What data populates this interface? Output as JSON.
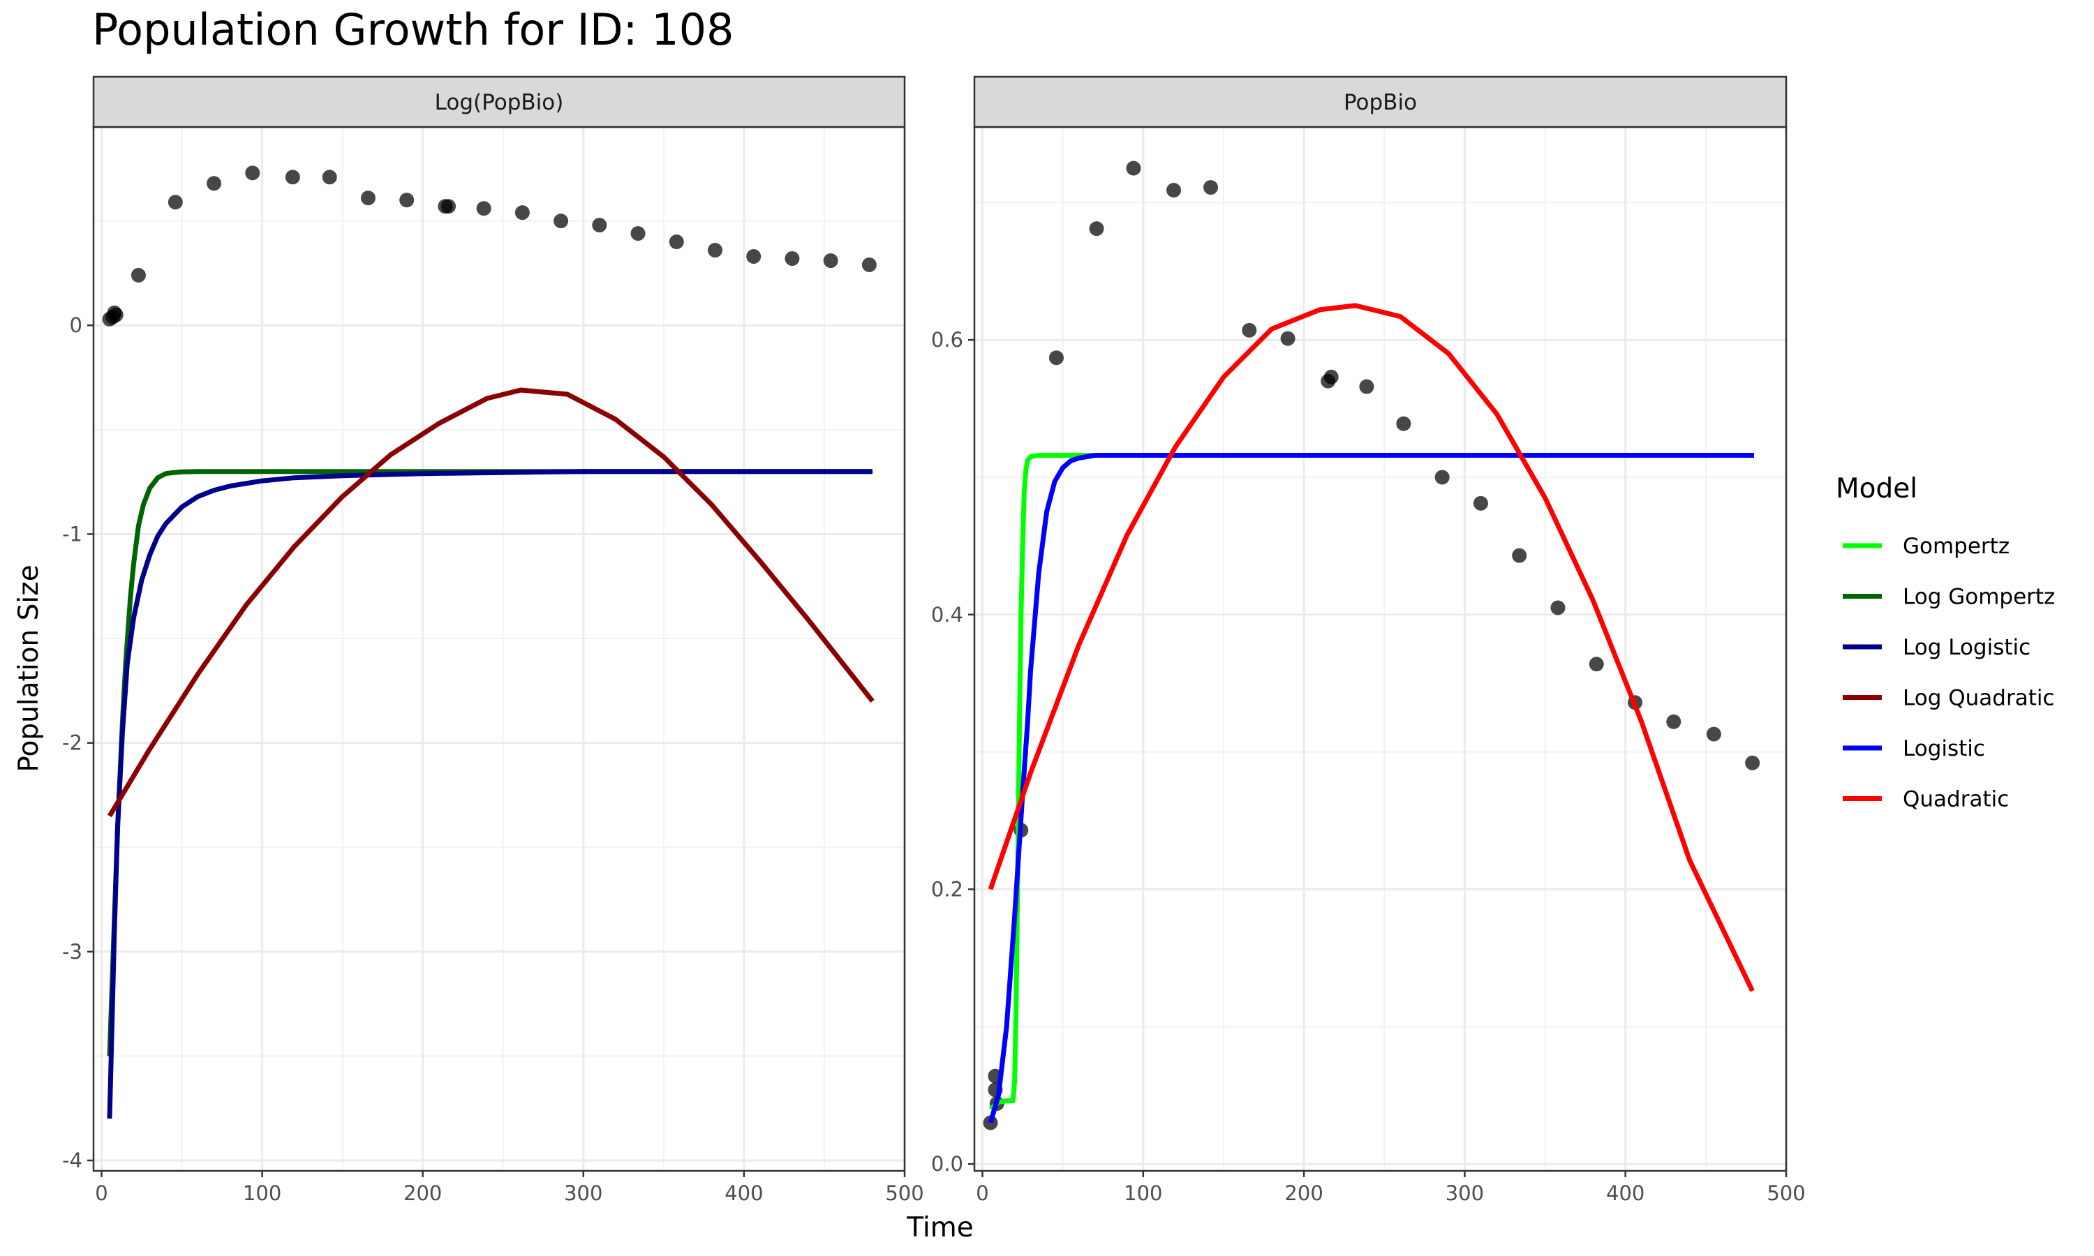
{
  "chart_data": {
    "type": "scatter",
    "title": "Population Growth for ID: 108",
    "xlabel": "Time",
    "ylabel": "Population Size",
    "legend": {
      "title": "Model",
      "placement": "right",
      "entries": [
        {
          "name": "Gompertz",
          "color": "#00ff00"
        },
        {
          "name": "Log Gompertz",
          "color": "#006400"
        },
        {
          "name": "Log Logistic",
          "color": "#00008b"
        },
        {
          "name": "Log Quadratic",
          "color": "#8b0000"
        },
        {
          "name": "Logistic",
          "color": "#0000ff"
        },
        {
          "name": "Quadratic",
          "color": "#ff0000"
        }
      ]
    },
    "panels": [
      {
        "strip": "Log(PopBio)",
        "xlim": [
          -5,
          500
        ],
        "ylim": [
          -4.05,
          0.95
        ],
        "xticks": [
          0,
          100,
          200,
          300,
          400,
          500
        ],
        "xtick_labels": [
          "0",
          "100",
          "200",
          "300",
          "400",
          "500"
        ],
        "yticks": [
          -4,
          -3,
          -2,
          -1,
          0
        ],
        "ytick_labels": [
          "-4",
          "-3",
          "-2",
          "-1",
          "0"
        ],
        "grid": true,
        "points": [
          {
            "x": 5,
            "y": 0.03
          },
          {
            "x": 7,
            "y": 0.04
          },
          {
            "x": 8,
            "y": 0.06
          },
          {
            "x": 9,
            "y": 0.05
          },
          {
            "x": 23,
            "y": 0.24
          },
          {
            "x": 46,
            "y": 0.59
          },
          {
            "x": 70,
            "y": 0.68
          },
          {
            "x": 94,
            "y": 0.73
          },
          {
            "x": 119,
            "y": 0.71
          },
          {
            "x": 142,
            "y": 0.71
          },
          {
            "x": 166,
            "y": 0.61
          },
          {
            "x": 190,
            "y": 0.6
          },
          {
            "x": 214,
            "y": 0.57
          },
          {
            "x": 216,
            "y": 0.57
          },
          {
            "x": 238,
            "y": 0.56
          },
          {
            "x": 262,
            "y": 0.54
          },
          {
            "x": 286,
            "y": 0.5
          },
          {
            "x": 310,
            "y": 0.48
          },
          {
            "x": 334,
            "y": 0.44
          },
          {
            "x": 358,
            "y": 0.4
          },
          {
            "x": 382,
            "y": 0.36
          },
          {
            "x": 406,
            "y": 0.33
          },
          {
            "x": 430,
            "y": 0.32
          },
          {
            "x": 454,
            "y": 0.31
          },
          {
            "x": 478,
            "y": 0.29
          }
        ],
        "series": [
          {
            "name": "Log Gompertz",
            "color": "#006400",
            "x": [
              5,
              8,
              10,
              13,
              15,
              18,
              20,
              23,
              26,
              30,
              35,
              40,
              45,
              50,
              60,
              70,
              80,
              100,
              150,
              200,
              300,
              400,
              480
            ],
            "y": [
              -3.5,
              -2.84,
              -2.41,
              -1.9,
              -1.62,
              -1.3,
              -1.14,
              -0.96,
              -0.86,
              -0.78,
              -0.73,
              -0.71,
              -0.705,
              -0.702,
              -0.7,
              -0.7,
              -0.7,
              -0.7,
              -0.7,
              -0.7,
              -0.7,
              -0.7,
              -0.7
            ]
          },
          {
            "name": "Log Logistic",
            "color": "#00008b",
            "x": [
              5,
              8,
              10,
              13,
              16,
              20,
              25,
              30,
              35,
              40,
              50,
              60,
              70,
              80,
              100,
              120,
              150,
              200,
              250,
              300,
              400,
              480
            ],
            "y": [
              -3.8,
              -2.9,
              -2.4,
              -1.95,
              -1.62,
              -1.4,
              -1.22,
              -1.1,
              -1.01,
              -0.95,
              -0.87,
              -0.82,
              -0.79,
              -0.77,
              -0.745,
              -0.73,
              -0.72,
              -0.71,
              -0.705,
              -0.7,
              -0.7,
              -0.7
            ]
          },
          {
            "name": "Log Quadratic",
            "color": "#8b0000",
            "x": [
              5,
              30,
              60,
              90,
              120,
              150,
              180,
              210,
              240,
              261,
              290,
              320,
              350,
              380,
              410,
              440,
              480
            ],
            "y": [
              -2.35,
              -2.03,
              -1.67,
              -1.34,
              -1.06,
              -0.82,
              -0.62,
              -0.47,
              -0.35,
              -0.31,
              -0.33,
              -0.45,
              -0.63,
              -0.86,
              -1.13,
              -1.41,
              -1.8
            ]
          }
        ]
      },
      {
        "strip": "PopBio",
        "xlim": [
          -5,
          500
        ],
        "ylim": [
          -0.005,
          0.755
        ],
        "xticks": [
          0,
          100,
          200,
          300,
          400,
          500
        ],
        "xtick_labels": [
          "0",
          "100",
          "200",
          "300",
          "400",
          "500"
        ],
        "yticks": [
          0,
          0.2,
          0.4,
          0.6
        ],
        "ytick_labels": [
          "0.0",
          "0.2",
          "0.4",
          "0.6"
        ],
        "grid": true,
        "points": [
          {
            "x": 5,
            "y": 0.03
          },
          {
            "x": 8,
            "y": 0.064
          },
          {
            "x": 8,
            "y": 0.054
          },
          {
            "x": 9,
            "y": 0.044
          },
          {
            "x": 24,
            "y": 0.243
          },
          {
            "x": 46,
            "y": 0.587
          },
          {
            "x": 71,
            "y": 0.681
          },
          {
            "x": 94,
            "y": 0.725
          },
          {
            "x": 119,
            "y": 0.709
          },
          {
            "x": 142,
            "y": 0.711
          },
          {
            "x": 166,
            "y": 0.607
          },
          {
            "x": 190,
            "y": 0.601
          },
          {
            "x": 215,
            "y": 0.57
          },
          {
            "x": 217,
            "y": 0.573
          },
          {
            "x": 239,
            "y": 0.566
          },
          {
            "x": 262,
            "y": 0.539
          },
          {
            "x": 286,
            "y": 0.5
          },
          {
            "x": 310,
            "y": 0.481
          },
          {
            "x": 334,
            "y": 0.443
          },
          {
            "x": 358,
            "y": 0.405
          },
          {
            "x": 382,
            "y": 0.364
          },
          {
            "x": 406,
            "y": 0.336
          },
          {
            "x": 430,
            "y": 0.322
          },
          {
            "x": 455,
            "y": 0.313
          },
          {
            "x": 479,
            "y": 0.292
          }
        ],
        "series": [
          {
            "name": "Gompertz",
            "color": "#00ff00",
            "x": [
              5,
              10,
              15,
              19,
              20,
              21,
              22,
              23,
              24,
              25,
              26,
              27,
              28,
              30,
              35,
              45,
              480
            ],
            "y": [
              0.04,
              0.045,
              0.046,
              0.046,
              0.06,
              0.12,
              0.22,
              0.32,
              0.4,
              0.45,
              0.49,
              0.505,
              0.512,
              0.515,
              0.516,
              0.516,
              0.516
            ]
          },
          {
            "name": "Logistic",
            "color": "#0000ff",
            "x": [
              5,
              10,
              15,
              20,
              25,
              28,
              30,
              35,
              40,
              45,
              50,
              55,
              60,
              70,
              80,
              100,
              200,
              300,
              400,
              480
            ],
            "y": [
              0.03,
              0.05,
              0.1,
              0.18,
              0.27,
              0.32,
              0.36,
              0.43,
              0.475,
              0.497,
              0.507,
              0.512,
              0.514,
              0.516,
              0.516,
              0.516,
              0.516,
              0.516,
              0.516,
              0.516
            ]
          },
          {
            "name": "Quadratic",
            "color": "#ff0000",
            "x": [
              5,
              30,
              60,
              90,
              120,
              150,
              180,
              210,
              232,
              260,
              290,
              320,
              350,
              380,
              410,
              440,
              479
            ],
            "y": [
              0.2,
              0.285,
              0.378,
              0.458,
              0.522,
              0.573,
              0.608,
              0.622,
              0.625,
              0.617,
              0.59,
              0.546,
              0.485,
              0.41,
              0.322,
              0.221,
              0.126
            ]
          }
        ]
      }
    ]
  }
}
